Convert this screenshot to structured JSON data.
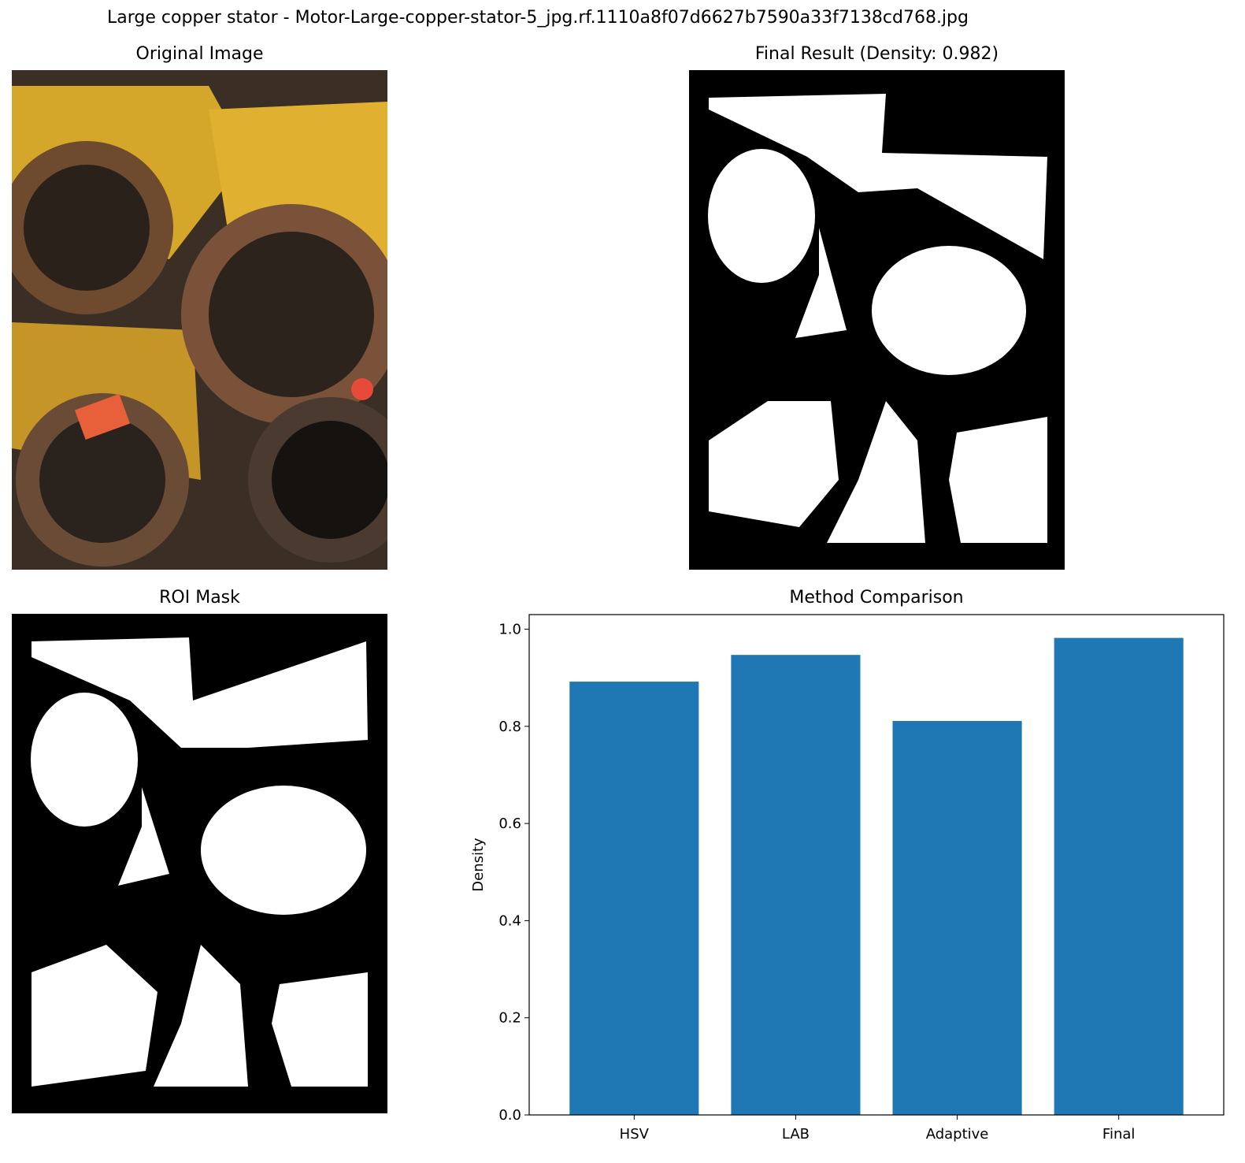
{
  "figure": {
    "suptitle": "Large copper stator - Motor-Large-copper-stator-5_jpg.rf.1110a8f07d6627b7590a33f7138cd768.jpg"
  },
  "panels": {
    "original": {
      "title": "Original Image"
    },
    "final": {
      "title": "Final Result (Density: 0.982)"
    },
    "roi": {
      "title": "ROI Mask"
    },
    "comparison": {
      "title": "Method Comparison"
    }
  },
  "chart_data": {
    "type": "bar",
    "title": "Method Comparison",
    "categories": [
      "HSV",
      "LAB",
      "Adaptive",
      "Final"
    ],
    "values": [
      0.892,
      0.947,
      0.811,
      0.982
    ],
    "xlabel": "",
    "ylabel": "Density",
    "ylim": [
      0,
      1.03
    ],
    "yticks": [
      "0.0",
      "0.2",
      "0.4",
      "0.6",
      "0.8",
      "1.0"
    ],
    "bar_color": "#1f77b4",
    "grid": false,
    "legend": "none"
  }
}
